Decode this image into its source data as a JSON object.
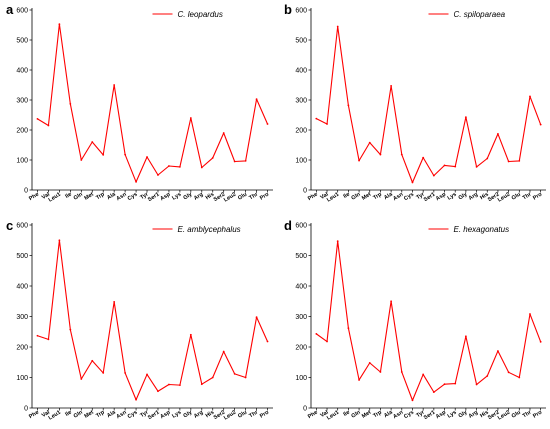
{
  "chart_data": [
    {
      "panel": "a",
      "type": "line",
      "series": [
        {
          "name": "C. leopardus",
          "color": "#ff0000",
          "values": [
            237,
            215,
            553,
            287,
            100,
            160,
            117,
            350,
            118,
            27,
            110,
            50,
            80,
            77,
            240,
            75,
            107,
            190,
            95,
            97,
            303,
            220
          ]
        }
      ],
      "categories": [
        "Phe",
        "Val",
        "Leu1",
        "Ile",
        "Gln",
        "Met",
        "Trp",
        "Ala",
        "Asn",
        "Cys",
        "Tyr",
        "Ser1",
        "Asp",
        "Lys",
        "Gly",
        "Arg",
        "His",
        "Ser2",
        "Leu2",
        "Glu",
        "Thr",
        "Pro"
      ],
      "ylim": [
        0,
        600
      ],
      "yticks": [
        "0",
        "100",
        "200",
        "300",
        "400",
        "500",
        "600"
      ],
      "legend_position": "top-right",
      "grid": false
    },
    {
      "panel": "b",
      "type": "line",
      "series": [
        {
          "name": "C. spiloparaea",
          "color": "#ff0000",
          "values": [
            238,
            220,
            545,
            282,
            98,
            158,
            118,
            347,
            118,
            25,
            108,
            48,
            82,
            78,
            243,
            77,
            105,
            187,
            95,
            97,
            312,
            218
          ]
        }
      ],
      "categories": [
        "Phe",
        "Val",
        "Leu1",
        "Ile",
        "Gln",
        "Met",
        "Trp",
        "Ala",
        "Asn",
        "Cys",
        "Tyr",
        "Ser1",
        "Asp",
        "Lys",
        "Gly",
        "Arg",
        "His",
        "Ser2",
        "Leu2",
        "Glu",
        "Thr",
        "Pro"
      ],
      "ylim": [
        0,
        600
      ],
      "yticks": [
        "0",
        "100",
        "200",
        "300",
        "400",
        "500",
        "600"
      ],
      "legend_position": "top-right",
      "grid": false
    },
    {
      "panel": "c",
      "type": "line",
      "series": [
        {
          "name": "E. amblycephalus",
          "color": "#ff0000",
          "values": [
            237,
            225,
            550,
            257,
            95,
            155,
            115,
            348,
            115,
            27,
            110,
            55,
            77,
            75,
            240,
            78,
            100,
            185,
            112,
            100,
            298,
            218
          ]
        }
      ],
      "categories": [
        "Phe",
        "Val",
        "Leu1",
        "Ile",
        "Gln",
        "Met",
        "Trp",
        "Ala",
        "Asn",
        "Cys",
        "Tyr",
        "Ser1",
        "Asp",
        "Lys",
        "Gly",
        "Arg",
        "His",
        "Ser2",
        "Leu2",
        "Glu",
        "Thr",
        "Pro"
      ],
      "ylim": [
        0,
        600
      ],
      "yticks": [
        "0",
        "100",
        "200",
        "300",
        "400",
        "500",
        "600"
      ],
      "legend_position": "top-right",
      "grid": false
    },
    {
      "panel": "d",
      "type": "line",
      "series": [
        {
          "name": "E. hexagonatus",
          "color": "#ff0000",
          "values": [
            243,
            218,
            547,
            262,
            92,
            148,
            118,
            350,
            118,
            25,
            110,
            52,
            78,
            80,
            235,
            77,
            105,
            187,
            117,
            100,
            308,
            217
          ]
        }
      ],
      "categories": [
        "Phe",
        "Val",
        "Leu1",
        "Ile",
        "Gln",
        "Met",
        "Trp",
        "Ala",
        "Asn",
        "Cys",
        "Tyr",
        "Ser1",
        "Asp",
        "Lys",
        "Gly",
        "Arg",
        "His",
        "Ser2",
        "Leu2",
        "Glu",
        "Thr",
        "Pro"
      ],
      "ylim": [
        0,
        600
      ],
      "yticks": [
        "0",
        "100",
        "200",
        "300",
        "400",
        "500",
        "600"
      ],
      "legend_position": "top-right",
      "grid": false
    }
  ]
}
